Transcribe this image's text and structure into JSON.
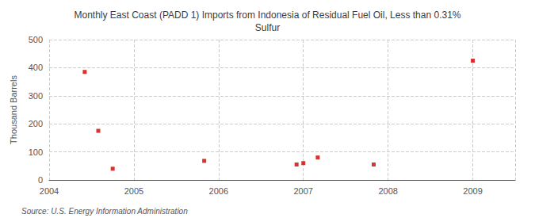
{
  "chart_data": {
    "type": "scatter",
    "title": "Monthly East Coast (PADD 1) Imports from Indonesia of Residual Fuel Oil, Less than 0.31%\nSulfur",
    "ylabel": "Thousand Barrels",
    "source": "Source: U.S. Energy Information Administration",
    "x": [
      2004.42,
      2004.58,
      2004.75,
      2005.83,
      2006.92,
      2007.0,
      2007.17,
      2007.83,
      2009.0
    ],
    "values": [
      385,
      175,
      40,
      68,
      55,
      60,
      80,
      55,
      425
    ],
    "color": "#cc0000",
    "marker": "square",
    "xlim": [
      2004,
      2009.5
    ],
    "xticks": [
      2004,
      2005,
      2006,
      2007,
      2008,
      2009
    ],
    "ylim": [
      0,
      500
    ],
    "yticks": [
      0,
      100,
      200,
      300,
      400,
      500
    ],
    "grid": true
  }
}
